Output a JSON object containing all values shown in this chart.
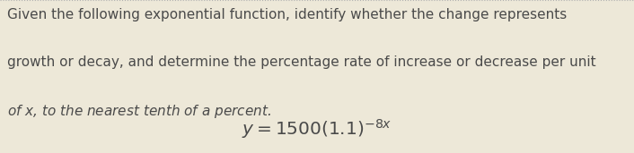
{
  "background_color": "#ede8d8",
  "text_color": "#4a4a4a",
  "border_color": "#b0b0b0",
  "paragraph_text_line1": "Given the following exponential function, identify whether the change represents",
  "paragraph_text_line2": "growth or decay, and determine the percentage rate of increase or decrease per unit",
  "paragraph_text_line3": "of $x$, to the nearest tenth of a percent.",
  "formula_text": "$y = 1500(1.1)^{-8x}$",
  "font_size_paragraph": 11.0,
  "font_size_formula": 14.5,
  "fig_width": 7.06,
  "fig_height": 1.71,
  "dpi": 100
}
